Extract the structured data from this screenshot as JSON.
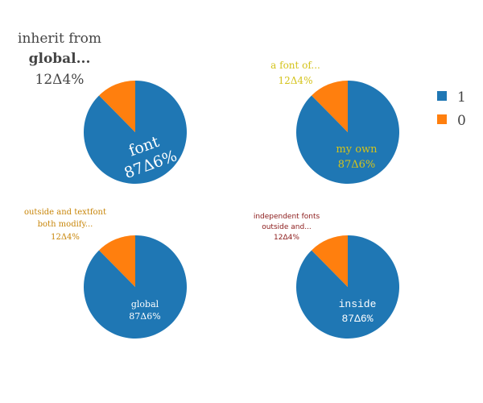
{
  "colors": {
    "series_1": "#1f77b4",
    "series_0": "#ff7f0e"
  },
  "legend": {
    "placement": "right",
    "items": [
      {
        "label": "1"
      },
      {
        "label": "0"
      }
    ]
  },
  "chart_data": [
    {
      "type": "pie",
      "position": "top-left",
      "labels": [
        "1",
        "0"
      ],
      "values": [
        87.6,
        12.4
      ],
      "inside_text": [
        "font",
        "87Δ6%"
      ],
      "outside_text": [
        "inherit from",
        "global...",
        "12Δ4%"
      ]
    },
    {
      "type": "pie",
      "position": "top-right",
      "labels": [
        "1",
        "0"
      ],
      "values": [
        87.6,
        12.4
      ],
      "inside_text": [
        "my own",
        "87Δ6%"
      ],
      "outside_text": [
        "a font of...",
        "12Δ4%"
      ]
    },
    {
      "type": "pie",
      "position": "bottom-left",
      "labels": [
        "1",
        "0"
      ],
      "values": [
        87.6,
        12.4
      ],
      "inside_text": [
        "global",
        "87Δ6%"
      ],
      "outside_text": [
        "outside and textfont",
        "both modify...",
        "12Δ4%"
      ]
    },
    {
      "type": "pie",
      "position": "bottom-right",
      "labels": [
        "1",
        "0"
      ],
      "values": [
        87.6,
        12.4
      ],
      "inside_text": [
        "inside",
        "87Δ6%"
      ],
      "outside_text": [
        "independent fonts",
        "outside and...",
        "12Δ4%"
      ]
    }
  ]
}
